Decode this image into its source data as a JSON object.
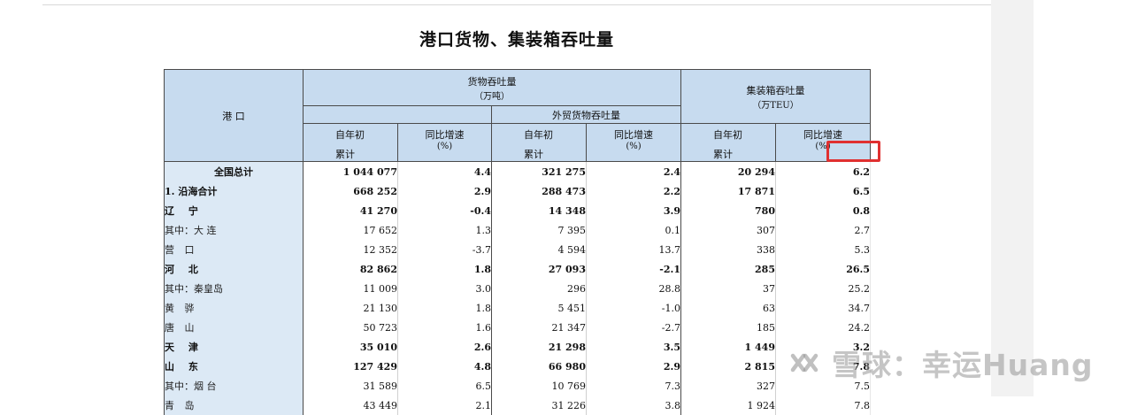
{
  "page": {
    "title": "港口货物、集装箱吞吐量"
  },
  "header": {
    "port_label": "港  口",
    "cargo_label": "货物吞吐量",
    "cargo_unit": "（万吨）",
    "foreign_label": "外贸货物吞吐量",
    "container_label": "集装箱吞吐量",
    "container_unit": "（万TEU）",
    "cumulative_top": "自年初",
    "cumulative_bottom": "累计",
    "growth_top": "同比增速",
    "growth_bottom": "(%)"
  },
  "rows": [
    {
      "name": "全国总计",
      "cargo": "1 044 077",
      "cargo_g": "4.4",
      "foreign": "321 275",
      "foreign_g": "2.4",
      "teu": "20 294",
      "teu_g": "6.2"
    },
    {
      "name": "1. 沿海合计",
      "cargo": "668 252",
      "cargo_g": "2.9",
      "foreign": "288 473",
      "foreign_g": "2.2",
      "teu": "17 871",
      "teu_g": "6.5"
    },
    {
      "name": "辽  宁",
      "cargo": "41 270",
      "cargo_g": "-0.4",
      "foreign": "14 348",
      "foreign_g": "3.9",
      "teu": "780",
      "teu_g": "0.8"
    },
    {
      "name": "其中：大  连",
      "cargo": "17 652",
      "cargo_g": "1.3",
      "foreign": "7 395",
      "foreign_g": "0.1",
      "teu": "307",
      "teu_g": "2.7"
    },
    {
      "name": "营  口",
      "cargo": "12 352",
      "cargo_g": "-3.7",
      "foreign": "4 594",
      "foreign_g": "13.7",
      "teu": "338",
      "teu_g": "5.3"
    },
    {
      "name": "河  北",
      "cargo": "82 862",
      "cargo_g": "1.8",
      "foreign": "27 093",
      "foreign_g": "-2.1",
      "teu": "285",
      "teu_g": "26.5"
    },
    {
      "name": "其中：秦皇岛",
      "cargo": "11 009",
      "cargo_g": "3.0",
      "foreign": "296",
      "foreign_g": "28.8",
      "teu": "37",
      "teu_g": "25.2"
    },
    {
      "name": "黄  骅",
      "cargo": "21 130",
      "cargo_g": "1.8",
      "foreign": "5 451",
      "foreign_g": "-1.0",
      "teu": "63",
      "teu_g": "34.7"
    },
    {
      "name": "唐  山",
      "cargo": "50 723",
      "cargo_g": "1.6",
      "foreign": "21 347",
      "foreign_g": "-2.7",
      "teu": "185",
      "teu_g": "24.2"
    },
    {
      "name": "天  津",
      "cargo": "35 010",
      "cargo_g": "2.6",
      "foreign": "21 298",
      "foreign_g": "3.5",
      "teu": "1 449",
      "teu_g": "3.2"
    },
    {
      "name": "山  东",
      "cargo": "127 429",
      "cargo_g": "4.8",
      "foreign": "66 980",
      "foreign_g": "2.9",
      "teu": "2 815",
      "teu_g": "7.8"
    },
    {
      "name": "其中：烟  台",
      "cargo": "31 589",
      "cargo_g": "6.5",
      "foreign": "10 769",
      "foreign_g": "7.3",
      "teu": "327",
      "teu_g": "7.5"
    },
    {
      "name": "青  岛",
      "cargo": "43 449",
      "cargo_g": "2.1",
      "foreign": "31 226",
      "foreign_g": "3.8",
      "teu": "1 924",
      "teu_g": "7.8"
    }
  ],
  "watermark": {
    "text": "雪球：幸运Huang"
  }
}
